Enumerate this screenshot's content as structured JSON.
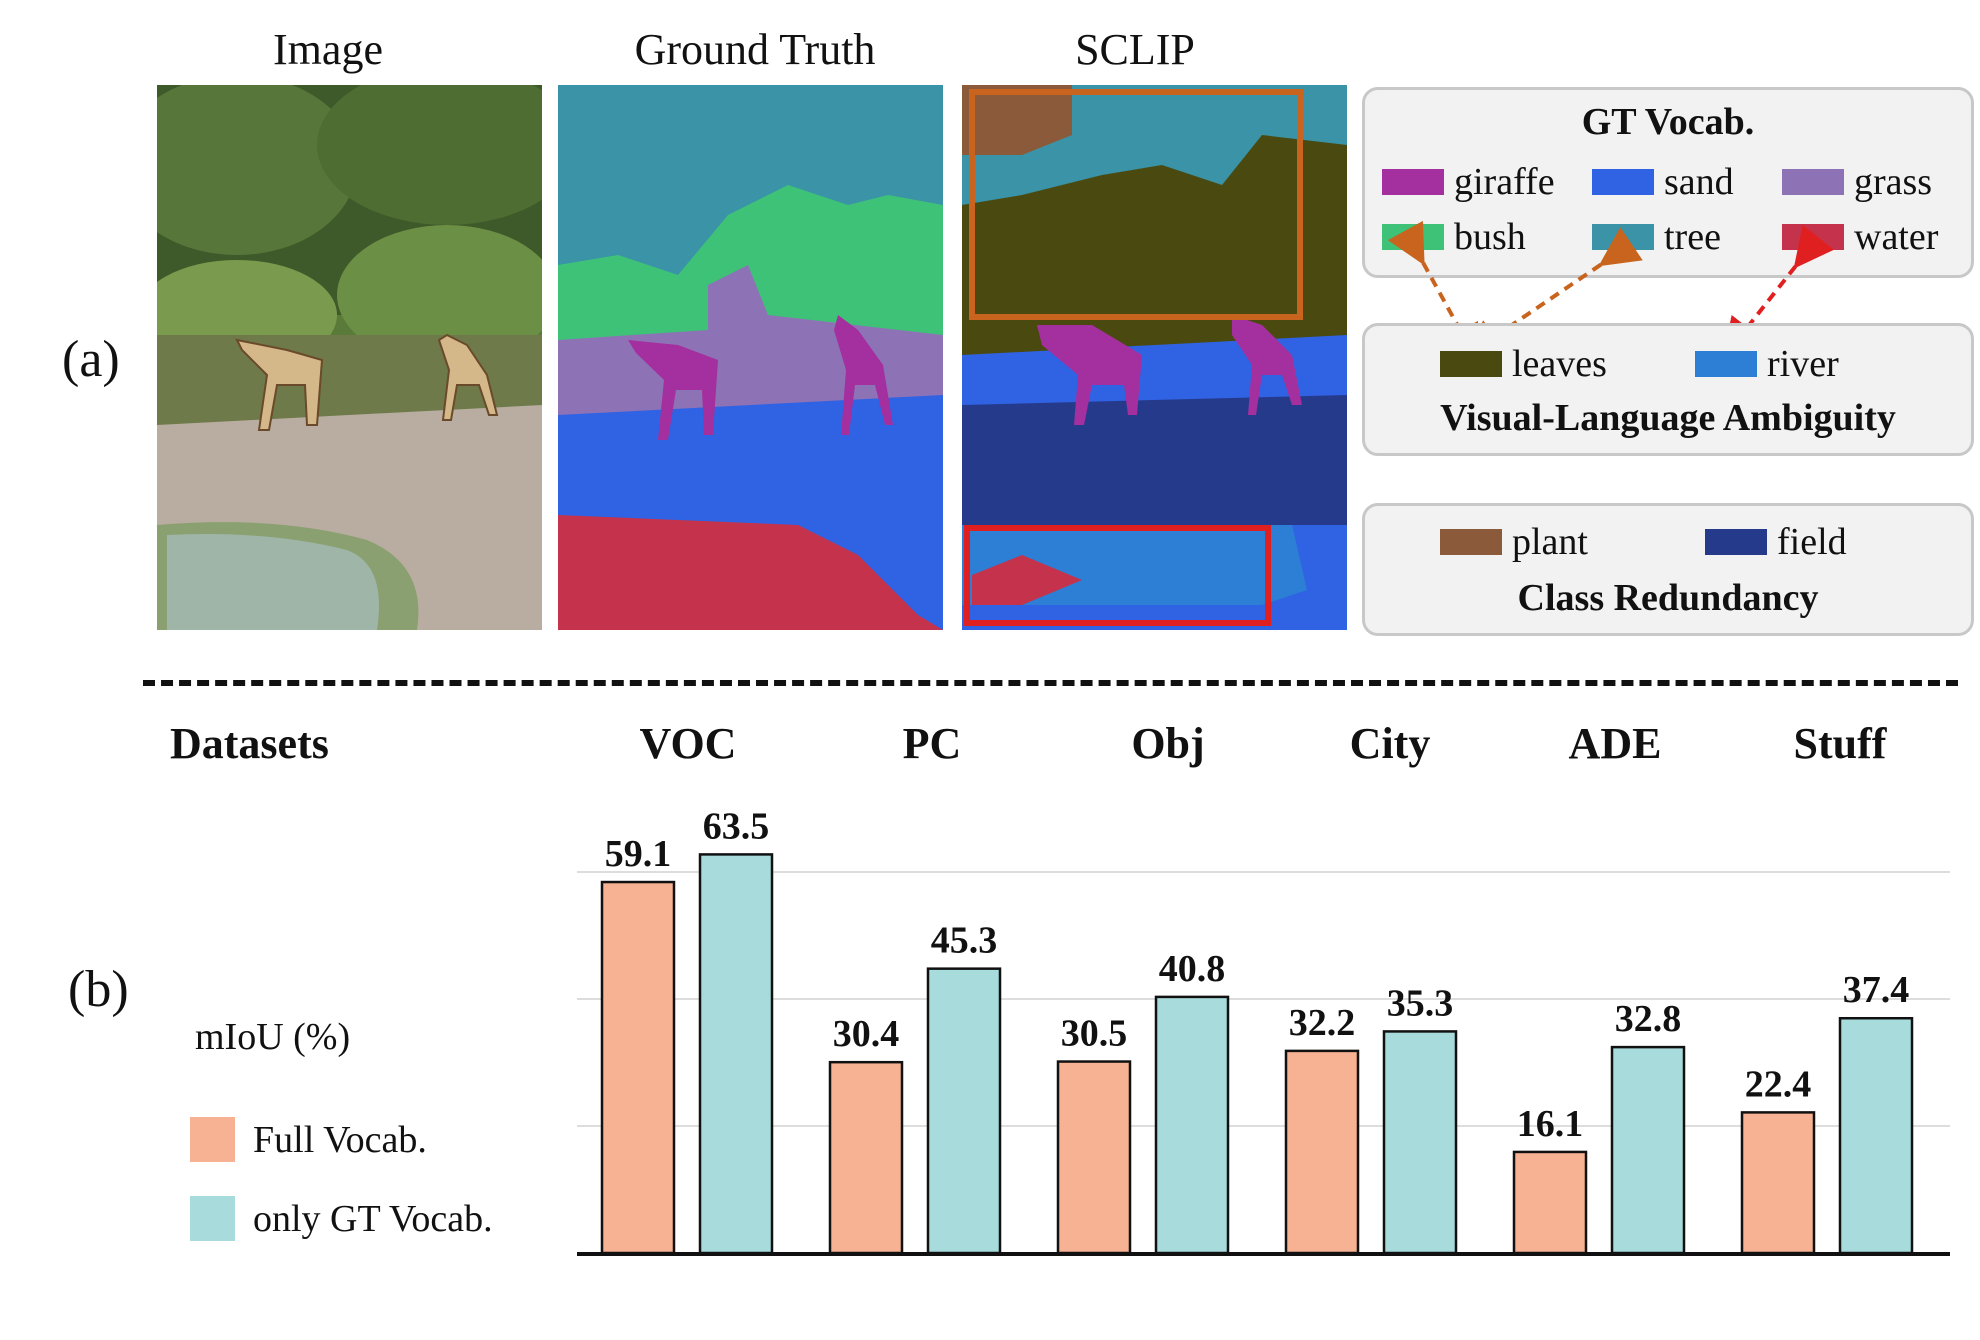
{
  "part_a": {
    "label": "(a)",
    "titles": {
      "image": "Image",
      "gt": "Ground Truth",
      "sclip": "SCLIP"
    },
    "gt_vocab": {
      "title": "GT Vocab.",
      "items": [
        {
          "name": "giraffe",
          "color": "#a3309e"
        },
        {
          "name": "sand",
          "color": "#2f63e3"
        },
        {
          "name": "grass",
          "color": "#8e72b6"
        },
        {
          "name": "bush",
          "color": "#3ec277"
        },
        {
          "name": "tree",
          "color": "#3a93a6"
        },
        {
          "name": "water",
          "color": "#c5324b"
        }
      ]
    },
    "ambiguity": {
      "title": "Visual-Language Ambiguity",
      "items": [
        {
          "name": "leaves",
          "color": "#4a4a10"
        },
        {
          "name": "river",
          "color": "#2d7fd6"
        }
      ]
    },
    "redundancy": {
      "title": "Class Redundancy",
      "items": [
        {
          "name": "plant",
          "color": "#8a5a3a"
        },
        {
          "name": "field",
          "color": "#263a8c"
        }
      ]
    },
    "arrow_colors": {
      "orange": "#c8641e",
      "red": "#e02020"
    }
  },
  "part_b": {
    "label": "(b)",
    "datasets_label": "Datasets",
    "ylabel": "mIoU (%)",
    "legend": [
      {
        "name": "Full Vocab.",
        "color": "#f7b193"
      },
      {
        "name": "only GT Vocab.",
        "color": "#a8dcdc"
      }
    ]
  },
  "chart_data": {
    "type": "bar",
    "categories": [
      "VOC",
      "PC",
      "Obj",
      "City",
      "ADE",
      "Stuff"
    ],
    "series": [
      {
        "name": "Full Vocab.",
        "values": [
          59.1,
          30.4,
          30.5,
          32.2,
          16.1,
          22.4
        ]
      },
      {
        "name": "only GT Vocab.",
        "values": [
          63.5,
          45.3,
          40.8,
          35.3,
          32.8,
          37.4
        ]
      }
    ],
    "xlabel": "Datasets",
    "ylabel": "mIoU (%)",
    "ylim": [
      0,
      65
    ],
    "grid": true,
    "legend_position": "left"
  }
}
